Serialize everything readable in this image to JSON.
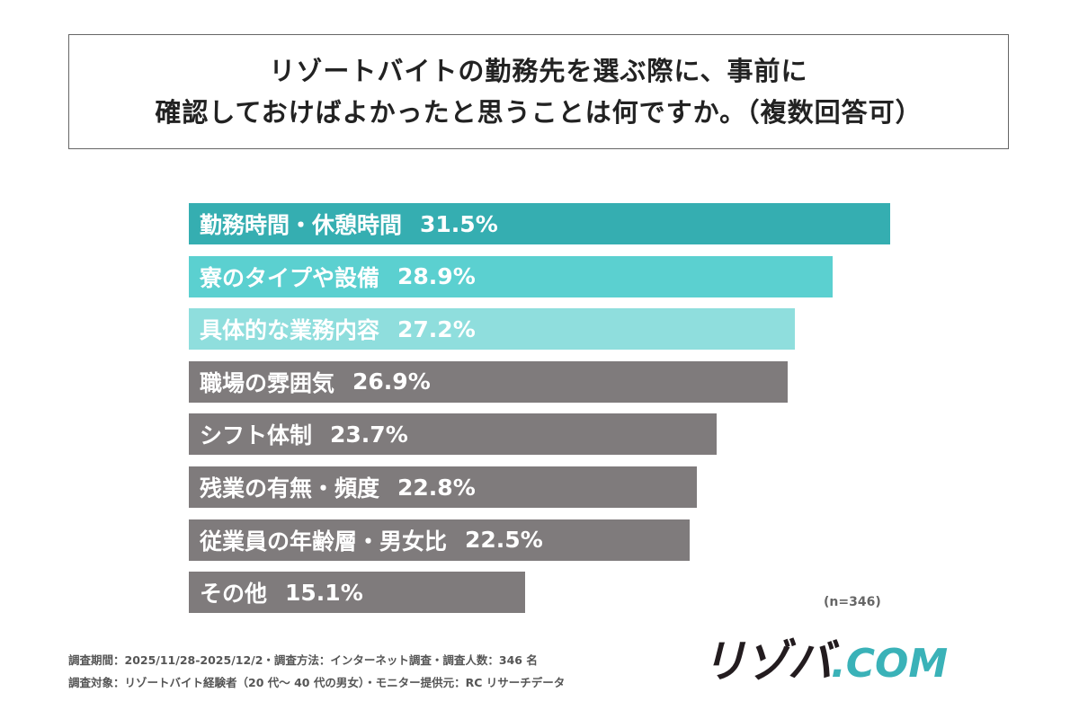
{
  "chart_data": {
    "type": "bar",
    "orientation": "horizontal",
    "title": [
      "リゾートバイトの勤務先を選ぶ際に、事前に",
      "確認しておけばよかったと思うことは何ですか。（複数回答可）"
    ],
    "categories": [
      "勤務時間・休憩時間",
      "寮のタイプや設備",
      "具体的な業務内容",
      "職場の雰囲気",
      "シフト体制",
      "残業の有無・頻度",
      "従業員の年齢層・男女比",
      "その他"
    ],
    "values": [
      31.5,
      28.9,
      27.2,
      26.9,
      23.7,
      22.8,
      22.5,
      15.1
    ],
    "value_labels": [
      "31.5%",
      "28.9%",
      "27.2%",
      "26.9%",
      "23.7%",
      "22.8%",
      "22.5%",
      "15.1%"
    ],
    "unit": "%",
    "colors": [
      "#35aeb1",
      "#5bd0d0",
      "#8fdedd",
      "#7f7b7c",
      "#7f7b7c",
      "#7f7b7c",
      "#7f7b7c",
      "#7f7b7c"
    ],
    "grid": false,
    "sample_note": "(n=346)"
  },
  "footer": {
    "line1": "調査期間：2025/11/28-2025/12/2・調査方法：インターネット調査・調査人数：346 名",
    "line2": "調査対象：リゾートバイト経験者（20 代～ 40 代の男女）・モニター提供元：RC リサーチデータ"
  },
  "logo": {
    "text_a": "リゾバ",
    "text_b": ".COM"
  }
}
